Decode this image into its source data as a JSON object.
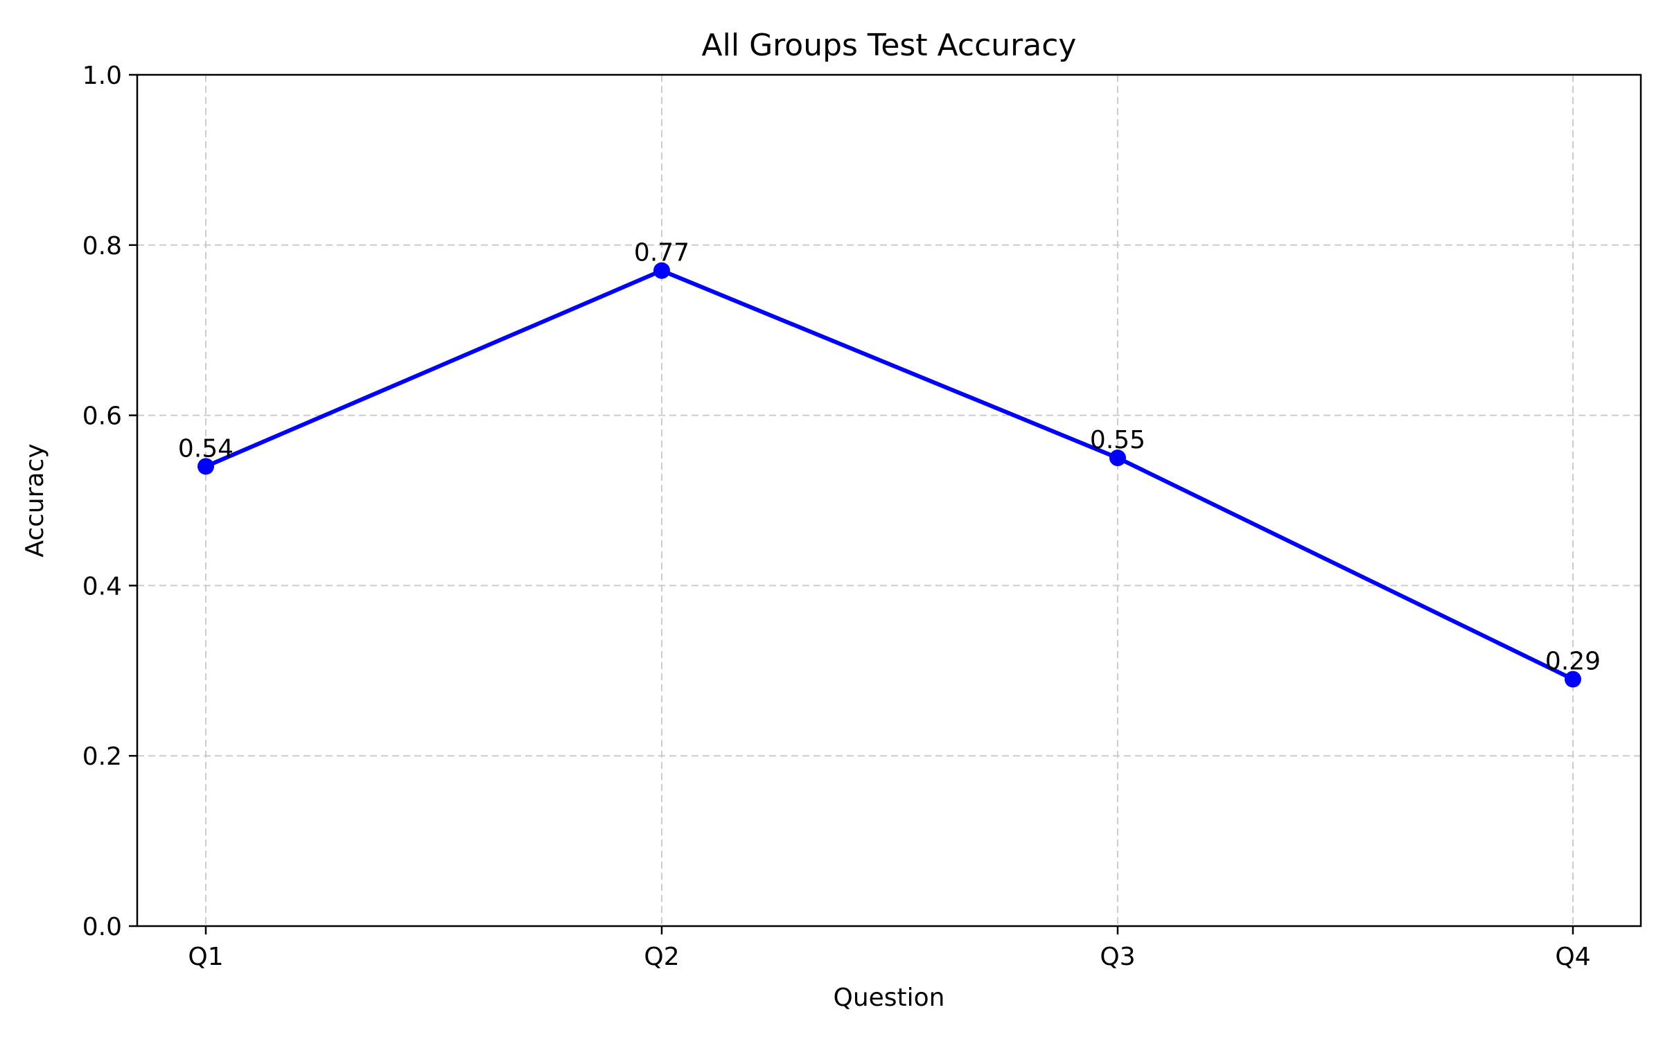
{
  "chart_data": {
    "type": "line",
    "title": "All Groups Test Accuracy",
    "xlabel": "Question",
    "ylabel": "Accuracy",
    "categories": [
      "Q1",
      "Q2",
      "Q3",
      "Q4"
    ],
    "series": [
      {
        "values": [
          0.54,
          0.77,
          0.55,
          0.29
        ],
        "color": "#0000ff",
        "marker": "circle"
      }
    ],
    "data_labels": [
      "0.54",
      "0.77",
      "0.55",
      "0.29"
    ],
    "ylim": [
      0.0,
      1.0
    ],
    "yticks": [
      {
        "value": 0.0,
        "label": "0.0"
      },
      {
        "value": 0.2,
        "label": "0.2"
      },
      {
        "value": 0.4,
        "label": "0.4"
      },
      {
        "value": 0.6,
        "label": "0.6"
      },
      {
        "value": 0.8,
        "label": "0.8"
      },
      {
        "value": 1.0,
        "label": "1.0"
      }
    ],
    "grid": true,
    "grid_style": "dashed",
    "grid_color": "#cccccc",
    "legend": "none"
  }
}
